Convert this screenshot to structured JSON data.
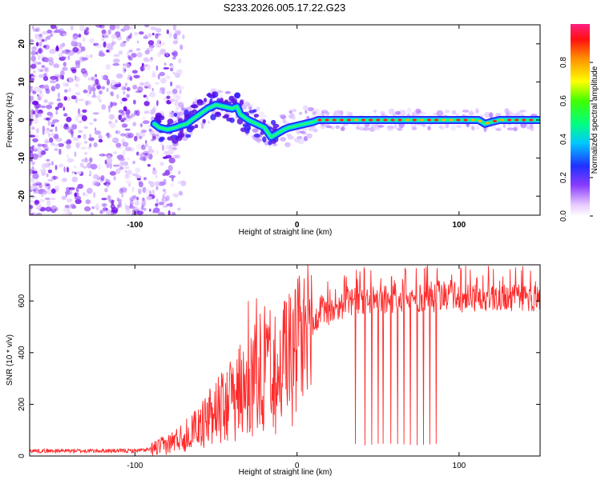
{
  "title": "S233.2026.005.17.22.G23",
  "chart_data": [
    {
      "type": "heatmap",
      "name": "spectrogram",
      "xlabel": "Height of straight line (km)",
      "ylabel": "Frequency (Hz)",
      "xlim": [
        -165,
        150
      ],
      "ylim": [
        -25,
        25
      ],
      "xticks": [
        -100,
        0,
        100
      ],
      "yticks": [
        20,
        10,
        0,
        -10,
        -20
      ],
      "ridge": [
        [
          -88,
          -1
        ],
        [
          -85,
          -2
        ],
        [
          -80,
          -2.5
        ],
        [
          -75,
          -2
        ],
        [
          -72,
          -1.5
        ],
        [
          -68,
          -1
        ],
        [
          -65,
          0
        ],
        [
          -60,
          1.5
        ],
        [
          -55,
          3
        ],
        [
          -50,
          4
        ],
        [
          -45,
          3.5
        ],
        [
          -40,
          3
        ],
        [
          -37,
          3.5
        ],
        [
          -35,
          1.5
        ],
        [
          -30,
          0
        ],
        [
          -25,
          -1
        ],
        [
          -20,
          -2
        ],
        [
          -16,
          -4.5
        ],
        [
          -12,
          -3.5
        ],
        [
          -8,
          -2.5
        ],
        [
          -5,
          -2
        ],
        [
          0,
          -1.5
        ],
        [
          5,
          -1
        ],
        [
          10,
          -0.5
        ],
        [
          13,
          0
        ],
        [
          20,
          0
        ],
        [
          40,
          0
        ],
        [
          60,
          0
        ],
        [
          80,
          0
        ],
        [
          100,
          0
        ],
        [
          112,
          0
        ],
        [
          116,
          -1
        ],
        [
          120,
          -0.5
        ],
        [
          125,
          0
        ],
        [
          150,
          0
        ]
      ],
      "colorbar": {
        "label": "Normalized spectral amplitude",
        "range": [
          0,
          1
        ],
        "ticks": [
          "0.0",
          "0.2",
          "0.4",
          "0.6",
          "0.8"
        ],
        "tick_values": [
          0,
          0.2,
          0.4,
          0.6,
          0.8
        ]
      }
    },
    {
      "type": "line",
      "name": "snr",
      "xlabel": "Height of straight line (km)",
      "ylabel": "SNR (10 * v/v)",
      "xlim": [
        -165,
        150
      ],
      "ylim": [
        0,
        740
      ],
      "xticks": [
        -100,
        0,
        100
      ],
      "yticks": [
        0,
        200,
        400,
        600
      ],
      "color": "#ff2a2a",
      "trend": [
        [
          -165,
          20
        ],
        [
          -100,
          20
        ],
        [
          -90,
          25
        ],
        [
          -80,
          45
        ],
        [
          -70,
          80
        ],
        [
          -60,
          130
        ],
        [
          -50,
          190
        ],
        [
          -40,
          260
        ],
        [
          -30,
          330
        ],
        [
          -20,
          380
        ],
        [
          -10,
          420
        ],
        [
          0,
          470
        ],
        [
          10,
          520
        ],
        [
          20,
          560
        ],
        [
          30,
          590
        ],
        [
          40,
          600
        ],
        [
          60,
          605
        ],
        [
          80,
          610
        ],
        [
          100,
          610
        ],
        [
          120,
          615
        ],
        [
          150,
          610
        ]
      ],
      "spikes": [
        [
          -35,
          430
        ],
        [
          -30,
          600
        ],
        [
          -25,
          610
        ],
        [
          -20,
          580
        ],
        [
          -8,
          600
        ],
        [
          -5,
          480
        ],
        [
          2,
          520
        ],
        [
          8,
          570
        ]
      ],
      "dropouts": [
        36,
        42,
        46,
        50,
        53,
        58,
        62,
        66,
        70,
        74,
        78,
        82,
        86
      ]
    }
  ]
}
